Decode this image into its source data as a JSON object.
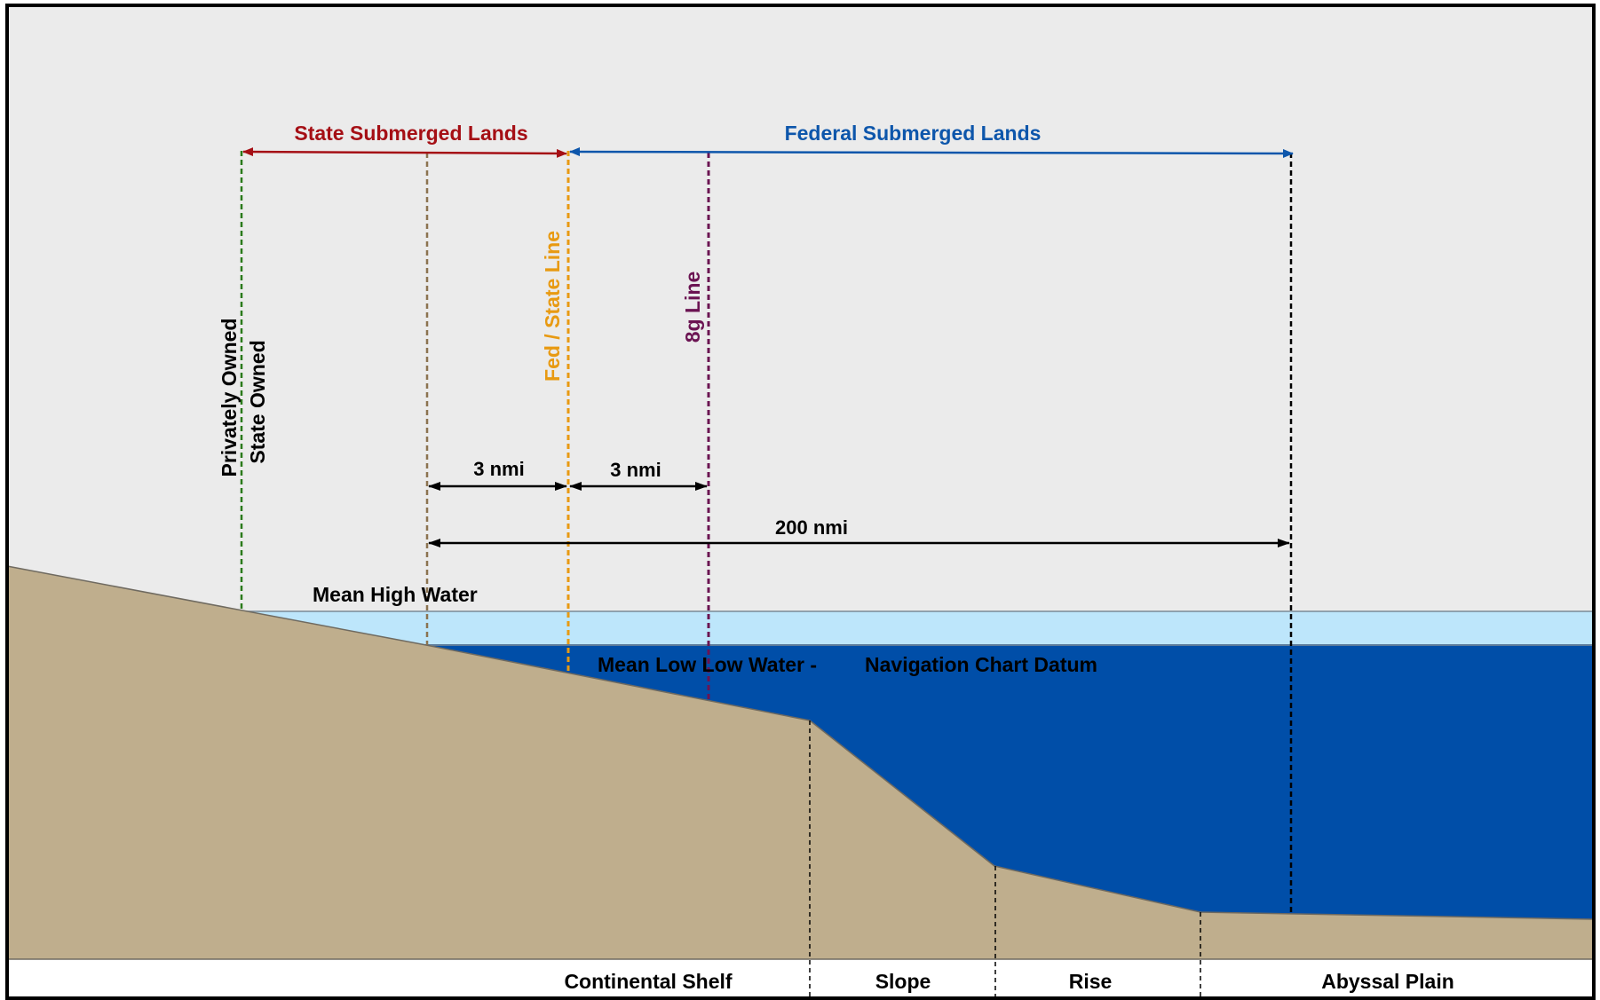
{
  "labels": {
    "state_submerged_lands": "State Submerged Lands",
    "federal_submerged_lands": "Federal Submerged Lands",
    "privately_owned": "Privately Owned",
    "state_owned": "State Owned",
    "fed_state_line": "Fed / State Line",
    "eight_g_line": "8g Line",
    "dist_3nmi_a": "3 nmi",
    "dist_3nmi_b": "3 nmi",
    "dist_200nmi": "200 nmi",
    "mean_high_water": "Mean High Water",
    "mean_low_low_water": "Mean Low Low Water -",
    "navigation_chart_datum": "Navigation Chart Datum"
  },
  "zones": {
    "continental_shelf": "Continental Shelf",
    "slope": "Slope",
    "rise": "Rise",
    "abyssal_plain": "Abyssal Plain"
  },
  "colors": {
    "sky": "#ebebeb",
    "land": "#bfae8d",
    "shallow_water": "#bde6fb",
    "deep_water": "#004ea8",
    "state_red": "#a50f15",
    "federal_blue": "#0d56ab",
    "private_green": "#2a7a1a",
    "baseline_brown": "#8b7350",
    "fed_state_orange": "#e89a12",
    "eight_g_purple": "#6b1452",
    "black": "#000000"
  }
}
